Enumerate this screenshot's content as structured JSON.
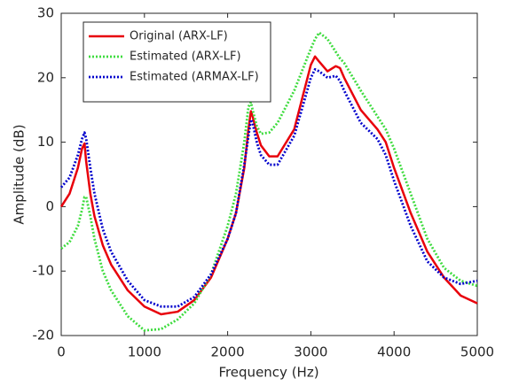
{
  "chart_data": {
    "type": "line",
    "xlabel": "Frequency (Hz)",
    "ylabel": "Amplitude (dB)",
    "x": [
      0,
      100,
      200,
      250,
      280,
      300,
      350,
      400,
      500,
      600,
      800,
      1000,
      1200,
      1400,
      1600,
      1800,
      2000,
      2100,
      2200,
      2250,
      2280,
      2300,
      2350,
      2400,
      2500,
      2600,
      2800,
      3000,
      3050,
      3100,
      3200,
      3300,
      3350,
      3400,
      3600,
      3800,
      3900,
      4000,
      4200,
      4400,
      4600,
      4800,
      5000
    ],
    "series": [
      {
        "name": "Original (ARX-LF)",
        "color": "#e8000b",
        "style": "solid",
        "values": [
          0,
          2,
          6,
          9,
          9.8,
          7,
          2,
          -1.5,
          -6,
          -9,
          -13,
          -15.5,
          -16.7,
          -16.3,
          -14.5,
          -11,
          -5,
          -1,
          6,
          12,
          14.8,
          14,
          11.5,
          9.5,
          7.8,
          7.8,
          12,
          22,
          23.3,
          22.5,
          21,
          21.8,
          21.5,
          20,
          15,
          12,
          10,
          6,
          -1,
          -7,
          -11,
          -13.8,
          -15
        ]
      },
      {
        "name": "Estimated (ARX-LF)",
        "color": "#3fdc3f",
        "style": "dotted",
        "values": [
          -6.5,
          -5.5,
          -3,
          -0.5,
          1.5,
          1.5,
          -1.5,
          -5,
          -10,
          -13,
          -17,
          -19.2,
          -19,
          -17.5,
          -15,
          -10.5,
          -3,
          2,
          10,
          15.5,
          16.2,
          15,
          12.5,
          11.3,
          11.5,
          13,
          18,
          24.5,
          26,
          27,
          26,
          24,
          23,
          22.3,
          18,
          14,
          12,
          9,
          2,
          -5,
          -9.5,
          -11.5,
          -12.3
        ]
      },
      {
        "name": "Estimated (ARMAX-LF)",
        "color": "#0000cc",
        "style": "dotted",
        "values": [
          3,
          4.5,
          8,
          10.5,
          11.5,
          10.5,
          6,
          2,
          -3.5,
          -7,
          -11.5,
          -14.5,
          -15.5,
          -15.5,
          -14,
          -10.5,
          -5,
          -1,
          6.5,
          11,
          13.5,
          13,
          10,
          8,
          6.5,
          6.5,
          11,
          20,
          21.3,
          21,
          20,
          20.3,
          19.5,
          18,
          13,
          10.5,
          8,
          4,
          -3,
          -8.5,
          -11,
          -12,
          -11.5
        ]
      }
    ],
    "xlim": [
      0,
      5000
    ],
    "xticks": [
      0,
      1000,
      2000,
      3000,
      4000,
      5000
    ],
    "ylim": [
      -20,
      30
    ],
    "yticks": [
      -20,
      -10,
      0,
      10,
      20,
      30
    ],
    "grid": false,
    "legend": "top-left"
  }
}
